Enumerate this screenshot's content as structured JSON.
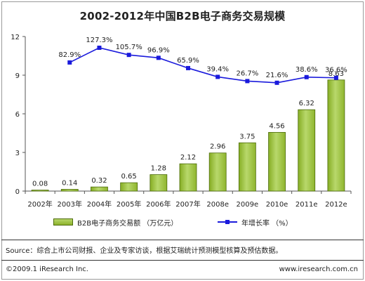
{
  "chart_data": {
    "type": "bar",
    "title": "2002-2012年中国B2B电子商务交易规模",
    "categories": [
      "2002年",
      "2003年",
      "2004年",
      "2005年",
      "2006年",
      "2007年",
      "2008e",
      "2009e",
      "2010e",
      "2011e",
      "2012e"
    ],
    "series": [
      {
        "name": "B2B电子商务交易额 （万亿元）",
        "type": "bar",
        "values": [
          0.08,
          0.14,
          0.32,
          0.65,
          1.28,
          2.12,
          2.96,
          3.75,
          4.56,
          6.32,
          8.63
        ],
        "labels": [
          "0.08",
          "0.14",
          "0.32",
          "0.65",
          "1.28",
          "2.12",
          "2.96",
          "3.75",
          "4.56",
          "6.32",
          "8.63"
        ]
      },
      {
        "name": "年增长率 （%）",
        "type": "line",
        "values": [
          null,
          82.9,
          127.3,
          105.7,
          96.9,
          65.9,
          39.4,
          26.7,
          21.6,
          38.6,
          36.6
        ],
        "labels": [
          "",
          "82.9%",
          "127.3%",
          "105.7%",
          "96.9%",
          "65.9%",
          "39.4%",
          "26.7%",
          "21.6%",
          "38.6%",
          "36.6%"
        ]
      }
    ],
    "yticks": [
      "0",
      "3",
      "6",
      "9",
      "12"
    ],
    "ylim": [
      0,
      12
    ],
    "grid": false,
    "legend": "bottom",
    "colors": {
      "bar": "#9cc13c",
      "bar_border": "#4c6b0a",
      "line": "#1a1adc"
    }
  },
  "legend": {
    "bar_label": "B2B电子商务交易额 （万亿元）",
    "line_label": "年增长率 （%）"
  },
  "source": "Source：综合上市公司财报、企业及专家访谈，根据艾瑞统计预测模型核算及预估数据。",
  "footer": {
    "copyright": "©2009.1 iResearch Inc.",
    "website": "www.iresearch.com.cn"
  }
}
